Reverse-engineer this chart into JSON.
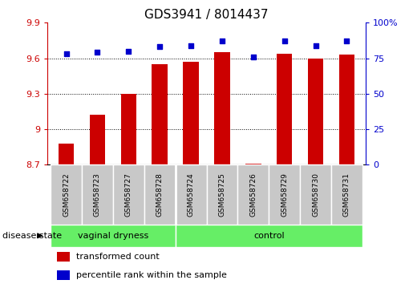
{
  "title": "GDS3941 / 8014437",
  "samples": [
    "GSM658722",
    "GSM658723",
    "GSM658727",
    "GSM658728",
    "GSM658724",
    "GSM658725",
    "GSM658726",
    "GSM658729",
    "GSM658730",
    "GSM658731"
  ],
  "bar_values": [
    8.88,
    9.12,
    9.3,
    9.55,
    9.57,
    9.65,
    8.71,
    9.64,
    9.6,
    9.63
  ],
  "dot_values": [
    78,
    79,
    80,
    83,
    84,
    87,
    76,
    87,
    84,
    87
  ],
  "groups": [
    {
      "label": "vaginal dryness",
      "start": 0,
      "end": 4
    },
    {
      "label": "control",
      "start": 4,
      "end": 10
    }
  ],
  "bar_color": "#CC0000",
  "dot_color": "#0000CC",
  "green_color": "#66EE66",
  "grey_color": "#C8C8C8",
  "ylim_left": [
    8.7,
    9.9
  ],
  "ylim_right": [
    0,
    100
  ],
  "yticks_left": [
    8.7,
    9.0,
    9.3,
    9.6,
    9.9
  ],
  "ytick_labels_left": [
    "8.7",
    "9",
    "9.3",
    "9.6",
    "9.9"
  ],
  "yticks_right": [
    0,
    25,
    50,
    75,
    100
  ],
  "ytick_labels_right": [
    "0",
    "25",
    "50",
    "75",
    "100%"
  ],
  "grid_lines": [
    9.0,
    9.3,
    9.6
  ],
  "disease_state_label": "disease state",
  "legend_bar": "transformed count",
  "legend_dot": "percentile rank within the sample",
  "bar_width": 0.5,
  "figsize": [
    5.15,
    3.54
  ],
  "dpi": 100
}
